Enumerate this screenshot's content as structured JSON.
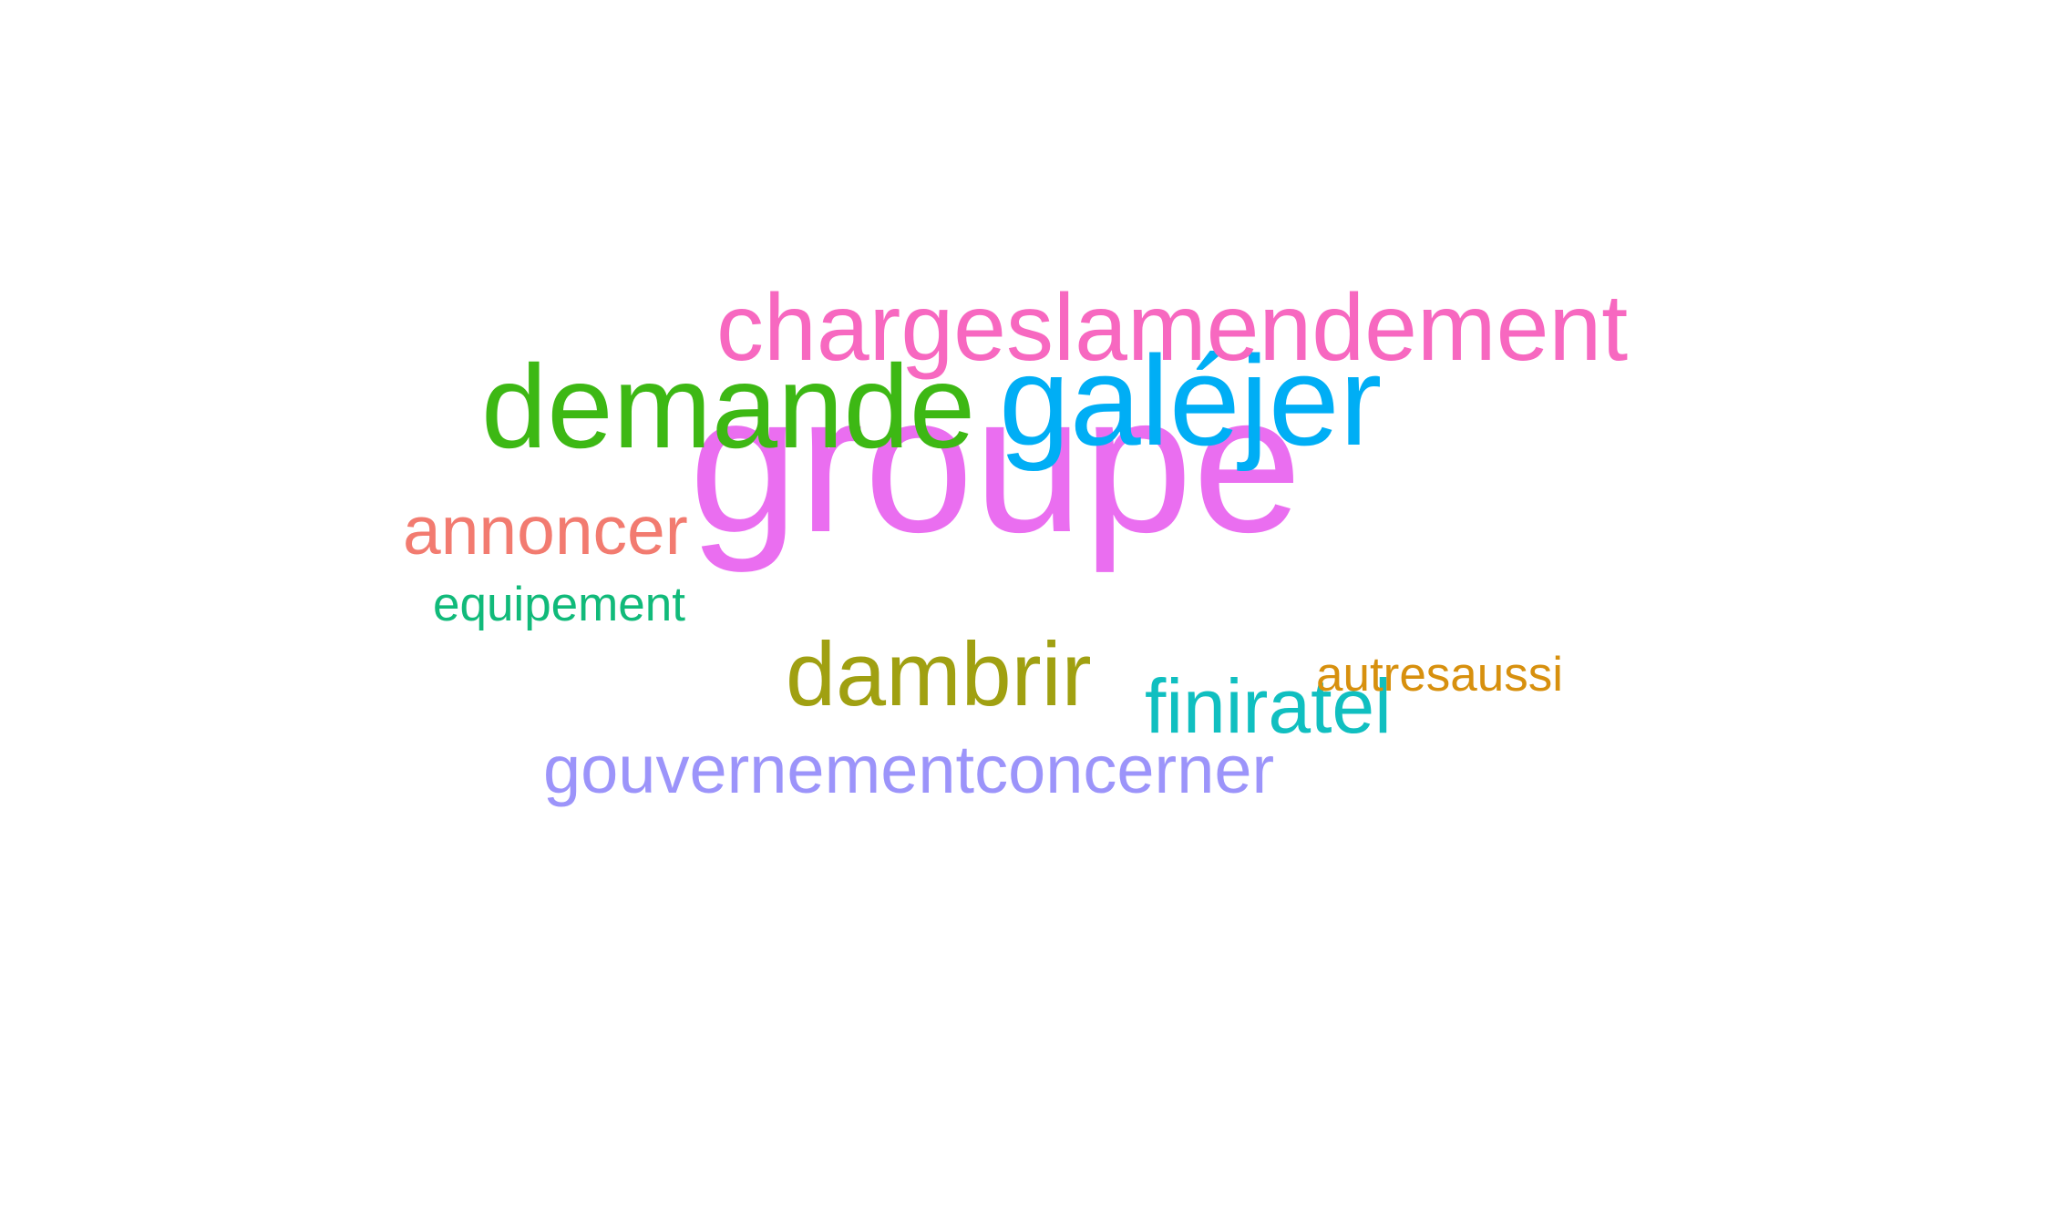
{
  "word_cloud": {
    "words": [
      {
        "text": "groupe",
        "color": "#EA6EF0"
      },
      {
        "text": "demande",
        "color": "#3DB814"
      },
      {
        "text": "galéjer",
        "color": "#00AEF5"
      },
      {
        "text": "chargeslamendement",
        "color": "#F768C0"
      },
      {
        "text": "dambrir",
        "color": "#A0A011"
      },
      {
        "text": "finiratel",
        "color": "#10BFC0"
      },
      {
        "text": "annoncer",
        "color": "#F27B70"
      },
      {
        "text": "gouvernementconcerner",
        "color": "#9C94FA"
      },
      {
        "text": "equipement",
        "color": "#11BA7A"
      },
      {
        "text": "autresaussi",
        "color": "#D7900E"
      }
    ]
  }
}
